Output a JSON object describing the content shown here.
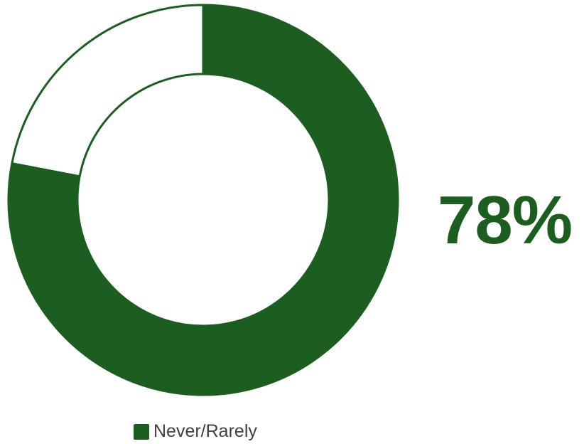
{
  "chart_data": {
    "type": "pie",
    "subtype": "donut",
    "slices": [
      {
        "label": "Never/Rarely",
        "value": 78,
        "color": "#1b5e20"
      },
      {
        "label": "",
        "value": 22,
        "color": "#ffffff"
      }
    ],
    "center_label": "78%",
    "legend": {
      "position": "bottom",
      "entries": [
        "Never/Rarely"
      ]
    }
  },
  "colors": {
    "accent": "#1b5e20",
    "legend_text": "#404040",
    "background": "#ffffff"
  }
}
